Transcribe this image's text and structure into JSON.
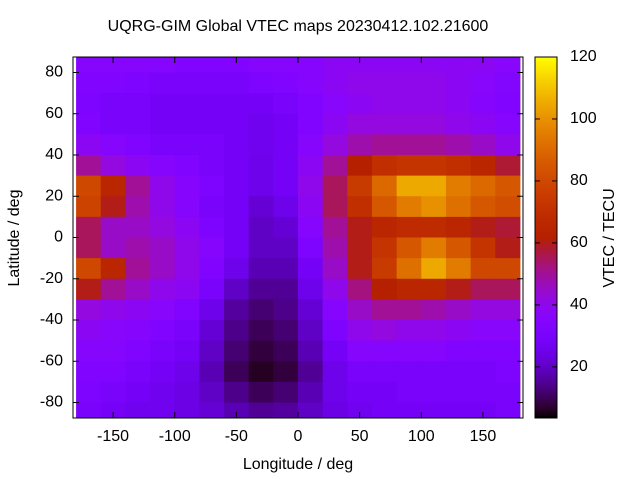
{
  "chart_data": {
    "type": "heatmap",
    "title": "UQRG-GIM Global VTEC maps 20230412.102.21600",
    "x_label": "Longitude / deg",
    "y_label": "Latitude / deg",
    "colorbar_label": "VTEC / TECU",
    "x": [
      -170,
      -150,
      -130,
      -110,
      -90,
      -70,
      -50,
      -30,
      -10,
      10,
      30,
      50,
      70,
      90,
      110,
      130,
      150,
      170
    ],
    "y": [
      85,
      75,
      65,
      55,
      45,
      35,
      25,
      15,
      5,
      -5,
      -15,
      -25,
      -35,
      -45,
      -55,
      -65,
      -75,
      -85
    ],
    "values": [
      [
        35,
        35,
        35,
        35,
        33,
        33,
        33,
        35,
        35,
        35,
        38,
        38,
        38,
        38,
        38,
        38,
        38,
        36
      ],
      [
        33,
        33,
        32,
        30,
        30,
        30,
        30,
        32,
        33,
        35,
        38,
        40,
        40,
        40,
        40,
        38,
        36,
        34
      ],
      [
        32,
        30,
        30,
        28,
        28,
        28,
        28,
        28,
        30,
        33,
        36,
        38,
        40,
        40,
        40,
        38,
        35,
        33
      ],
      [
        33,
        30,
        30,
        28,
        28,
        28,
        28,
        26,
        28,
        33,
        38,
        42,
        42,
        42,
        42,
        40,
        38,
        35
      ],
      [
        38,
        35,
        33,
        30,
        30,
        30,
        28,
        26,
        28,
        35,
        42,
        48,
        50,
        50,
        50,
        48,
        45,
        40
      ],
      [
        50,
        42,
        38,
        35,
        33,
        30,
        28,
        25,
        28,
        38,
        50,
        62,
        70,
        72,
        72,
        70,
        65,
        58
      ],
      [
        80,
        65,
        50,
        40,
        35,
        32,
        28,
        25,
        28,
        40,
        55,
        75,
        90,
        105,
        105,
        95,
        90,
        85
      ],
      [
        78,
        60,
        48,
        40,
        35,
        30,
        28,
        22,
        25,
        38,
        55,
        70,
        85,
        95,
        100,
        92,
        85,
        82
      ],
      [
        55,
        45,
        45,
        42,
        38,
        32,
        28,
        20,
        22,
        35,
        50,
        60,
        65,
        68,
        68,
        65,
        60,
        58
      ],
      [
        55,
        45,
        48,
        45,
        40,
        35,
        28,
        20,
        20,
        32,
        48,
        60,
        72,
        85,
        95,
        85,
        72,
        60
      ],
      [
        80,
        65,
        50,
        45,
        40,
        33,
        25,
        18,
        18,
        28,
        45,
        60,
        75,
        92,
        105,
        95,
        80,
        80
      ],
      [
        60,
        50,
        45,
        40,
        38,
        30,
        20,
        15,
        15,
        25,
        40,
        52,
        62,
        65,
        65,
        60,
        55,
        55
      ],
      [
        42,
        40,
        38,
        36,
        33,
        25,
        16,
        12,
        14,
        22,
        35,
        45,
        50,
        50,
        48,
        45,
        42,
        42
      ],
      [
        38,
        36,
        35,
        33,
        30,
        22,
        14,
        10,
        12,
        20,
        32,
        40,
        42,
        40,
        40,
        38,
        36,
        36
      ],
      [
        35,
        35,
        33,
        30,
        28,
        20,
        12,
        8,
        10,
        18,
        28,
        35,
        35,
        35,
        35,
        33,
        33,
        33
      ],
      [
        33,
        33,
        30,
        28,
        25,
        18,
        10,
        6,
        8,
        15,
        25,
        30,
        30,
        30,
        30,
        30,
        30,
        32
      ],
      [
        32,
        30,
        28,
        26,
        24,
        20,
        14,
        10,
        12,
        18,
        25,
        28,
        28,
        30,
        30,
        30,
        30,
        30
      ],
      [
        30,
        28,
        26,
        26,
        24,
        22,
        18,
        15,
        16,
        20,
        24,
        26,
        28,
        28,
        28,
        28,
        28,
        30
      ]
    ],
    "xlim": [
      -182.5,
      182.5
    ],
    "ylim": [
      -87.5,
      87.5
    ],
    "xticks": [
      -150,
      -100,
      -50,
      0,
      50,
      100,
      150
    ],
    "yticks": [
      -80,
      -60,
      -40,
      -20,
      0,
      20,
      40,
      60,
      80
    ],
    "cblim": [
      3.5,
      120
    ],
    "cbticks": [
      20,
      40,
      60,
      80,
      100,
      120
    ]
  }
}
